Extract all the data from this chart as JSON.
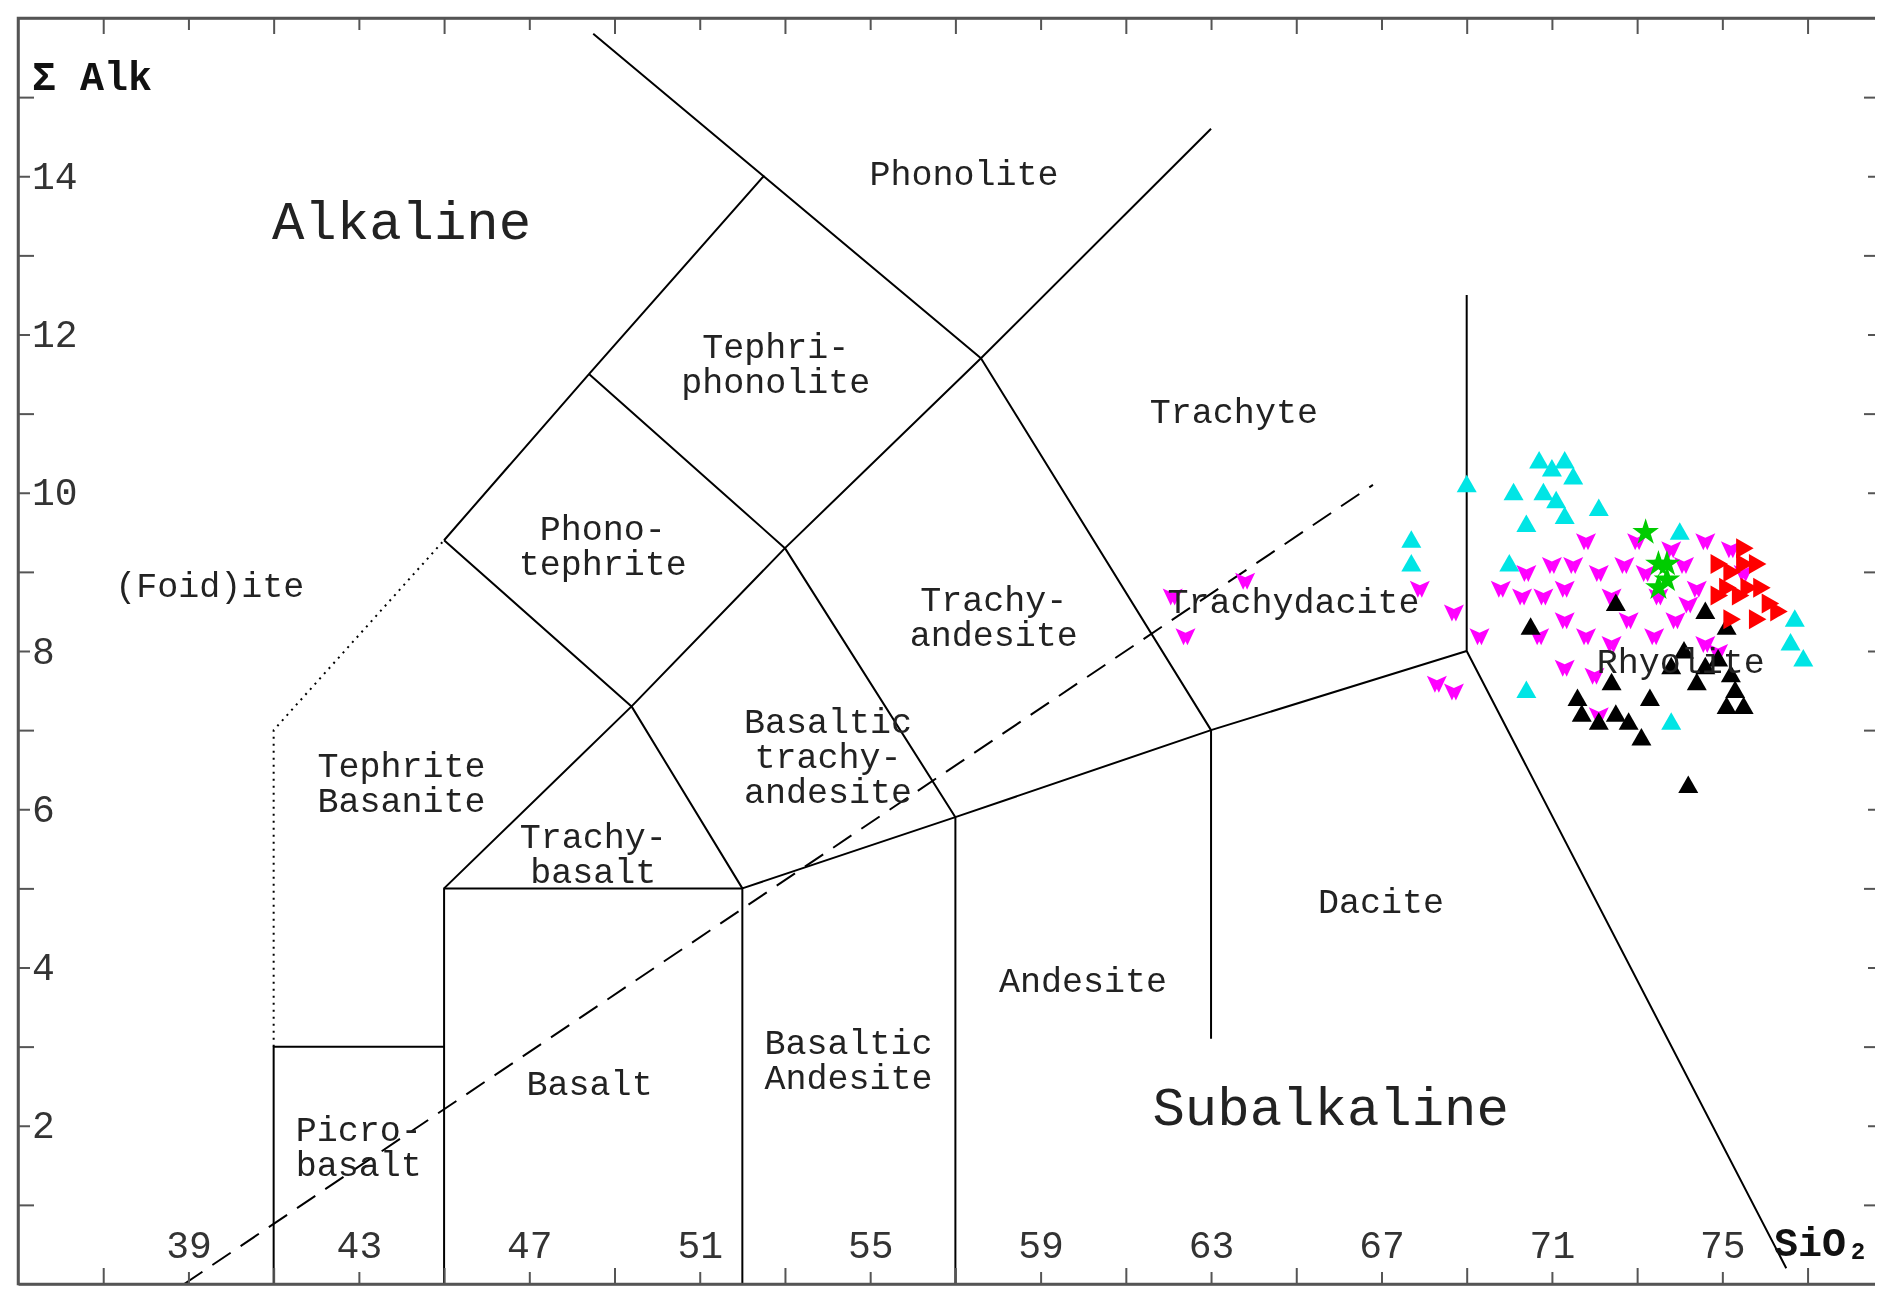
{
  "chart_data": {
    "type": "scatter",
    "xlabel": "SiO₂",
    "ylabel": "Σ Alk",
    "xlim": [
      35,
      78.7
    ],
    "ylim": [
      0,
      16
    ],
    "xticks": [
      {
        "value": 37,
        "label": null
      },
      39,
      {
        "value": 41,
        "label": null
      },
      43,
      {
        "value": 45,
        "label": null
      },
      47,
      {
        "value": 49,
        "label": null
      },
      51,
      {
        "value": 53,
        "label": null
      },
      55,
      {
        "value": 57,
        "label": null
      },
      59,
      {
        "value": 61,
        "label": null
      },
      63,
      {
        "value": 65,
        "label": null
      },
      67,
      {
        "value": 69,
        "label": null
      },
      71,
      {
        "value": 73,
        "label": null
      },
      75,
      {
        "value": 77,
        "label": null
      }
    ],
    "yticks": [
      {
        "value": 1,
        "label": null
      },
      2,
      {
        "value": 3,
        "label": null
      },
      4,
      {
        "value": 5,
        "label": null
      },
      6,
      {
        "value": 7,
        "label": null
      },
      8,
      {
        "value": 9,
        "label": null
      },
      10,
      {
        "value": 11,
        "label": null
      },
      12,
      {
        "value": 13,
        "label": null
      },
      14,
      {
        "value": 15,
        "label": null
      }
    ],
    "series": [
      {
        "type": "line",
        "color": "#000000",
        "line_style": "solid",
        "marker": "none",
        "x": [
          41,
          41,
          45
        ],
        "values": [
          0,
          3,
          3
        ]
      },
      {
        "type": "line",
        "color": "#000000",
        "line_style": "solid",
        "marker": "none",
        "x": [
          45,
          45,
          52,
          57,
          63,
          69
        ],
        "values": [
          0,
          5,
          5,
          5.9,
          7,
          8
        ]
      },
      {
        "type": "line",
        "color": "#000000",
        "line_style": "solid",
        "marker": "none",
        "x": [
          52,
          52
        ],
        "values": [
          0,
          5
        ]
      },
      {
        "type": "line",
        "color": "#000000",
        "line_style": "solid",
        "marker": "none",
        "x": [
          57,
          57
        ],
        "values": [
          0,
          5.9
        ]
      },
      {
        "type": "line",
        "color": "#000000",
        "line_style": "solid",
        "marker": "none",
        "x": [
          63,
          63
        ],
        "values": [
          3.1,
          7
        ]
      },
      {
        "type": "line",
        "color": "#000000",
        "line_style": "solid",
        "marker": "none",
        "x": [
          69,
          69,
          76.5
        ],
        "values": [
          12.5,
          8,
          0.2
        ]
      },
      {
        "type": "line",
        "color": "#000000",
        "line_style": "solid",
        "marker": "none",
        "x": [
          45,
          49.4,
          52
        ],
        "values": [
          5,
          7.3,
          5
        ]
      },
      {
        "type": "line",
        "color": "#000000",
        "line_style": "dotted",
        "marker": "none",
        "x": [
          41,
          41,
          45
        ],
        "values": [
          3,
          7,
          9.4
        ]
      },
      {
        "type": "line",
        "color": "#000000",
        "line_style": "solid",
        "marker": "none",
        "x": [
          45,
          48.4,
          52.5,
          48.5
        ],
        "values": [
          9.4,
          11.5,
          14,
          15.8
        ]
      },
      {
        "type": "line",
        "color": "#000000",
        "line_style": "solid",
        "marker": "none",
        "x": [
          45,
          49.4,
          53,
          57.6,
          63
        ],
        "values": [
          9.4,
          7.3,
          9.3,
          11.7,
          14.6
        ]
      },
      {
        "type": "line",
        "color": "#000000",
        "line_style": "solid",
        "marker": "none",
        "x": [
          48.4,
          53,
          57
        ],
        "values": [
          11.5,
          9.3,
          5.9
        ]
      },
      {
        "type": "line",
        "color": "#000000",
        "line_style": "solid",
        "marker": "none",
        "x": [
          52.5,
          57.6,
          63
        ],
        "values": [
          14,
          11.7,
          7
        ]
      },
      {
        "type": "line",
        "color": "#000000",
        "line_style": "dashed",
        "marker": "none",
        "x": [
          38.9,
          66.8
        ],
        "values": [
          0,
          10.1
        ]
      },
      {
        "color": "#00e5e5",
        "marker": "triangle",
        "x": [
          69.0,
          70.1,
          70.7,
          71.0,
          71.3,
          70.8,
          71.1,
          71.3,
          71.5,
          72.1,
          70.4,
          67.7,
          67.7,
          70.0,
          70.4,
          73.8,
          74.0,
          76.7,
          76.9,
          76.6
        ],
        "values": [
          10.1,
          10.0,
          10.4,
          10.3,
          10.4,
          10.0,
          9.9,
          9.7,
          10.2,
          9.8,
          9.6,
          9.4,
          9.1,
          9.1,
          7.5,
          7.1,
          9.5,
          8.4,
          7.9,
          8.1
        ]
      },
      {
        "color": "#ff00ff",
        "marker": "triangle-down",
        "x": [
          70.4,
          70.8,
          71.3,
          71.5,
          71.8,
          72.1,
          72.4,
          72.7,
          73.0,
          73.2,
          73.5,
          73.8,
          74.1,
          74.4,
          74.6,
          75.2,
          71.3,
          71.8,
          72.4,
          70.7,
          72.0,
          74.6,
          74.9,
          71.3,
          72.1,
          70.3,
          71.0,
          72.8,
          73.4,
          73.9,
          74.2,
          75.5,
          67.9,
          68.7,
          68.3,
          68.7,
          69.3,
          69.8,
          63.8,
          62.4,
          62.1
        ],
        "values": [
          9.0,
          8.7,
          8.8,
          9.1,
          9.4,
          9.0,
          8.7,
          9.1,
          9.4,
          9.0,
          8.7,
          9.3,
          9.1,
          8.8,
          9.4,
          9.3,
          8.4,
          8.2,
          8.1,
          8.2,
          7.7,
          8.1,
          8.0,
          7.8,
          7.2,
          8.7,
          9.1,
          8.4,
          8.2,
          8.4,
          8.6,
          9.0,
          8.8,
          8.5,
          7.6,
          7.5,
          8.2,
          8.8,
          8.9,
          8.2,
          8.7
        ]
      },
      {
        "color": "#000000",
        "marker": "triangle",
        "x": [
          70.5,
          72.5,
          74.6,
          75.1,
          71.6,
          71.7,
          72.4,
          72.5,
          72.8,
          73.1,
          73.3,
          73.8,
          74.1,
          74.4,
          74.6,
          74.9,
          75.2,
          75.3,
          75.5,
          75.1,
          74.2,
          72.1
        ],
        "values": [
          8.3,
          8.6,
          8.5,
          8.3,
          7.4,
          7.2,
          7.6,
          7.2,
          7.1,
          6.9,
          7.4,
          7.8,
          8.0,
          7.6,
          7.8,
          7.9,
          7.7,
          7.5,
          7.3,
          7.3,
          6.3,
          7.1
        ]
      },
      {
        "color": "#00cc00",
        "marker": "star",
        "x": [
          73.2,
          73.5,
          73.7,
          73.5,
          73.7
        ],
        "values": [
          9.5,
          9.1,
          8.9,
          8.8,
          9.1
        ]
      },
      {
        "color": "#ff0000",
        "marker": "triangle-right",
        "x": [
          74.9,
          75.2,
          75.5,
          75.8,
          75.1,
          75.4,
          75.6,
          75.9,
          76.1,
          75.2,
          75.8,
          76.3,
          75.5,
          74.9
        ],
        "values": [
          9.1,
          9.0,
          9.1,
          9.1,
          8.8,
          8.7,
          8.8,
          8.8,
          8.6,
          8.4,
          8.4,
          8.5,
          9.3,
          8.7
        ]
      }
    ],
    "annotations": [
      "Alkaline",
      "Subalkaline",
      "Phonolite",
      "Tephri-\nphonolite",
      "Trachyte",
      "Phono-\ntephrite",
      "(Foid)ite",
      "Trachy-\nandesite",
      "Trachydacite",
      "Rhyolite",
      "Basaltic\ntrachy-\nandesite",
      "Tephrite\nBasanite",
      "Trachy-\nbasalt",
      "Dacite",
      "Andesite",
      "Basaltic\nAndesite",
      "Basalt",
      "Picro-\nbasalt"
    ]
  }
}
